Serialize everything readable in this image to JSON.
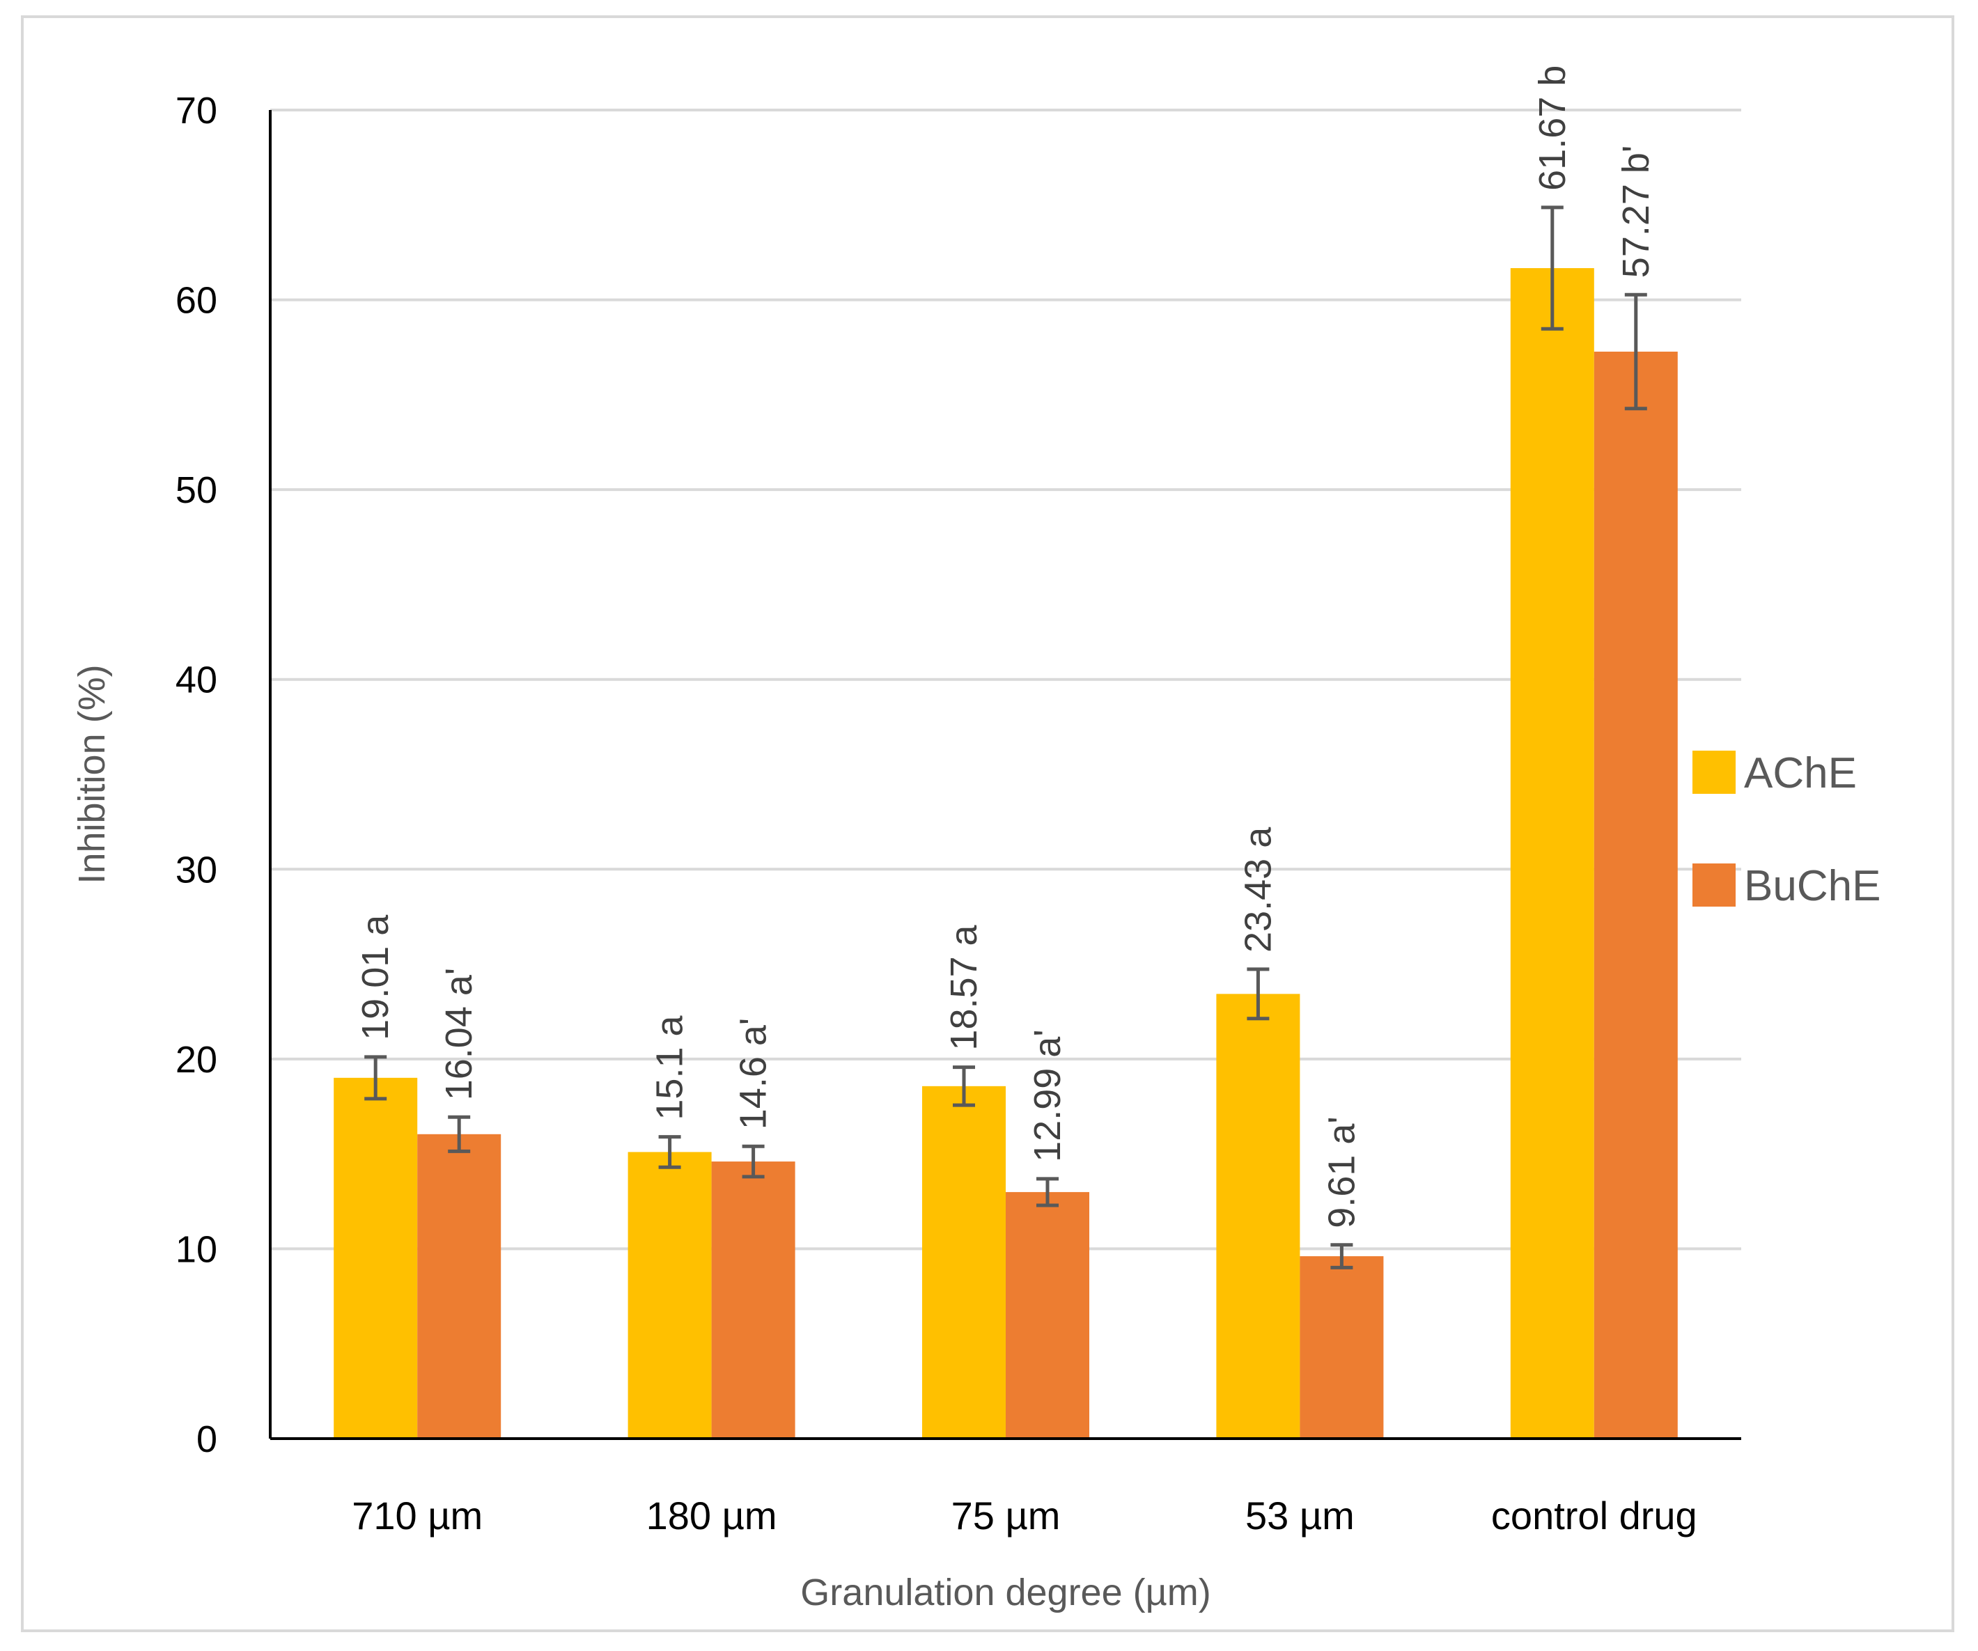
{
  "chart_data": {
    "type": "bar",
    "title": "",
    "xlabel": "Granulation degree (µm)",
    "ylabel": "Inhibition (%)",
    "ylim": [
      0,
      70
    ],
    "yticks": [
      "0",
      "10",
      "20",
      "30",
      "40",
      "50",
      "60",
      "70"
    ],
    "categories": [
      "710 µm",
      "180 µm",
      "75 µm",
      "53 µm",
      "control drug"
    ],
    "grid": true,
    "legend_position": "right",
    "series": [
      {
        "name": "AChE",
        "color": "#FFC000",
        "values": [
          19.01,
          15.1,
          18.57,
          23.43,
          61.67
        ],
        "errors": [
          1.1,
          0.8,
          1.0,
          1.3,
          3.2
        ],
        "labels": [
          "19.01 a",
          "15.1 a",
          "18.57 a",
          "23.43 a",
          "61.67 b"
        ]
      },
      {
        "name": "BuChE",
        "color": "#ED7D31",
        "values": [
          16.04,
          14.6,
          12.99,
          9.61,
          57.27
        ],
        "errors": [
          0.9,
          0.8,
          0.7,
          0.6,
          3.0
        ],
        "labels": [
          "16.04 a'",
          "14.6 a'",
          "12.99 a'",
          "9.61 a'",
          "57.27 b'"
        ]
      }
    ]
  }
}
